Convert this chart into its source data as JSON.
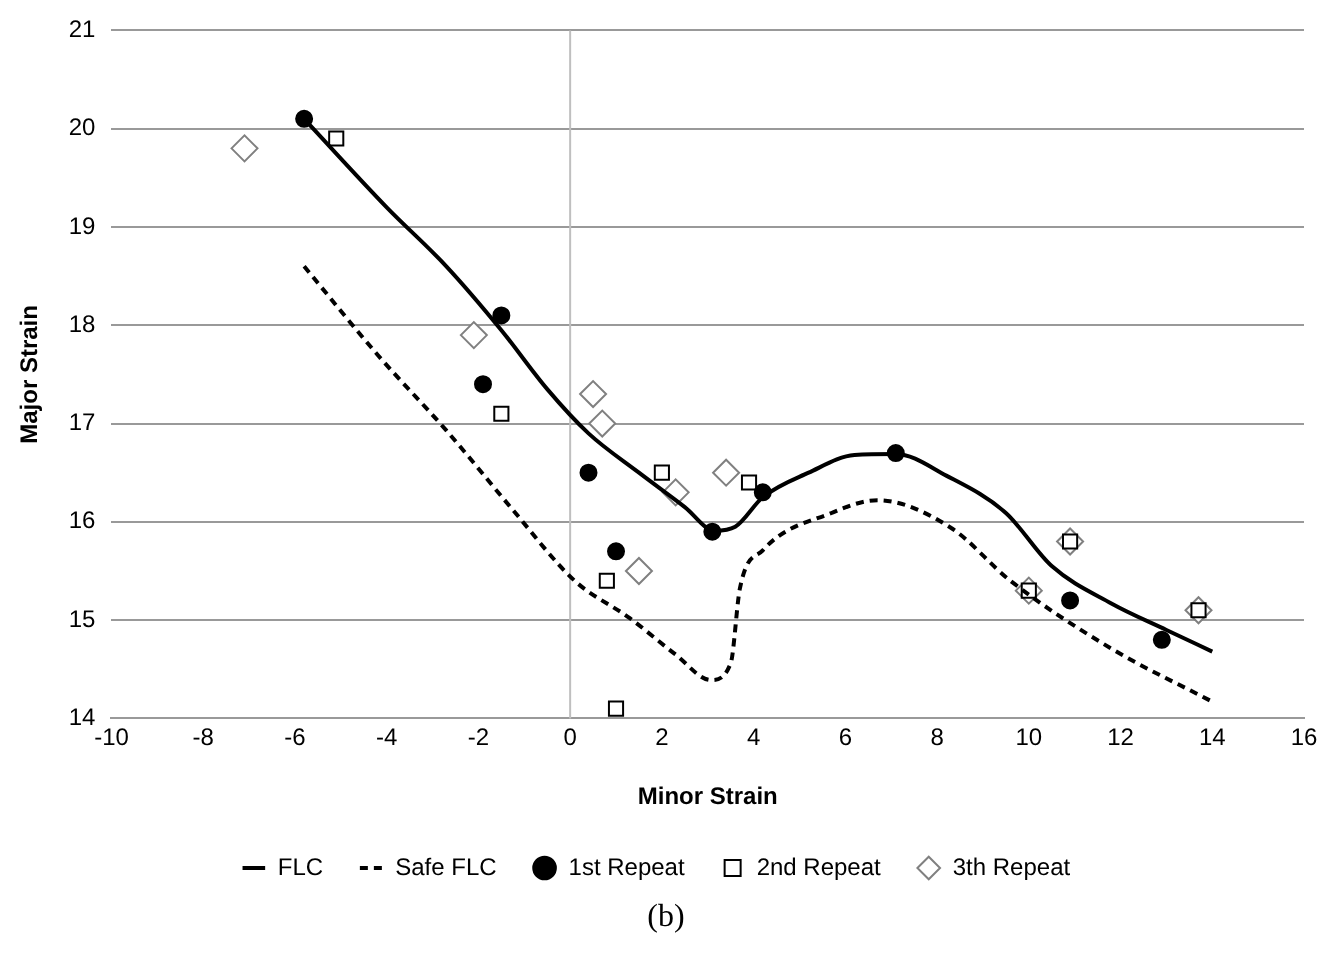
{
  "chart_data": {
    "type": "scatter",
    "xlabel": "Minor Strain",
    "ylabel": "Major Strain",
    "xlim": [
      -10,
      16
    ],
    "xticks": [
      -10,
      -8,
      -6,
      -4,
      -2,
      0,
      2,
      4,
      6,
      8,
      10,
      12,
      14,
      16
    ],
    "ylim": [
      14,
      21
    ],
    "yticks": [
      14,
      15,
      16,
      17,
      18,
      19,
      20,
      21
    ],
    "grid": "y",
    "legend": "bottom",
    "annotations": [
      "(b)"
    ],
    "ref_lines": [
      {
        "axis": "x",
        "value": 0,
        "color": "#bfbfbf"
      }
    ],
    "series": [
      {
        "name": "FLC",
        "type": "line",
        "color": "#000000",
        "marker": "none",
        "line_style": "solid",
        "x": [
          -5.8,
          -4,
          -2.7,
          -1.5,
          -0.5,
          0.4,
          1.5,
          2.5,
          3.15,
          3.6,
          4.2,
          5.2,
          6.2,
          7.1,
          8.2,
          9.5,
          10.5,
          11.8,
          13,
          14
        ],
        "values": [
          20.1,
          19.2,
          18.6,
          17.95,
          17.35,
          16.9,
          16.5,
          16.15,
          15.91,
          15.95,
          16.25,
          16.5,
          16.68,
          16.69,
          16.47,
          16.09,
          15.55,
          15.17,
          14.9,
          14.68
        ]
      },
      {
        "name": "Safe FLC",
        "type": "line",
        "color": "#000000",
        "marker": "none",
        "line_style": "dashed",
        "x": [
          -5.8,
          -4.2,
          -2.7,
          -1.3,
          0.1,
          1.3,
          2.3,
          3.07,
          3.5,
          3.7,
          4.2,
          5.7,
          6.7,
          8.3,
          9.6,
          11.8,
          14
        ],
        "values": [
          18.6,
          17.7,
          16.93,
          16.15,
          15.4,
          15.02,
          14.65,
          14.39,
          14.56,
          15.32,
          15.71,
          16.09,
          16.22,
          15.94,
          15.4,
          14.71,
          14.17
        ]
      },
      {
        "name": "1st Repeat",
        "type": "scatter",
        "color": "#000000",
        "marker": "circle",
        "x": [
          -5.8,
          -1.5,
          -1.9,
          0.4,
          1.0,
          3.1,
          4.2,
          7.1,
          10.9,
          12.9
        ],
        "values": [
          20.1,
          18.1,
          17.4,
          16.5,
          15.7,
          15.9,
          16.3,
          16.7,
          15.2,
          14.8
        ]
      },
      {
        "name": "2nd Repeat",
        "type": "scatter",
        "color": "#000000",
        "marker": "square",
        "x": [
          -5.1,
          -1.5,
          0.8,
          1.0,
          2.0,
          3.9,
          10.0,
          10.9,
          13.7
        ],
        "values": [
          19.9,
          17.1,
          15.4,
          14.1,
          16.5,
          16.4,
          15.3,
          15.8,
          15.1
        ]
      },
      {
        "name": "3th Repeat",
        "type": "scatter",
        "color": "#808080",
        "marker": "diamond",
        "x": [
          -7.1,
          -2.1,
          0.5,
          0.7,
          1.5,
          2.3,
          3.4,
          10.0,
          10.9,
          13.7
        ],
        "values": [
          19.8,
          17.9,
          17.3,
          17.0,
          15.5,
          16.3,
          16.5,
          15.3,
          15.8,
          15.1
        ]
      }
    ]
  }
}
